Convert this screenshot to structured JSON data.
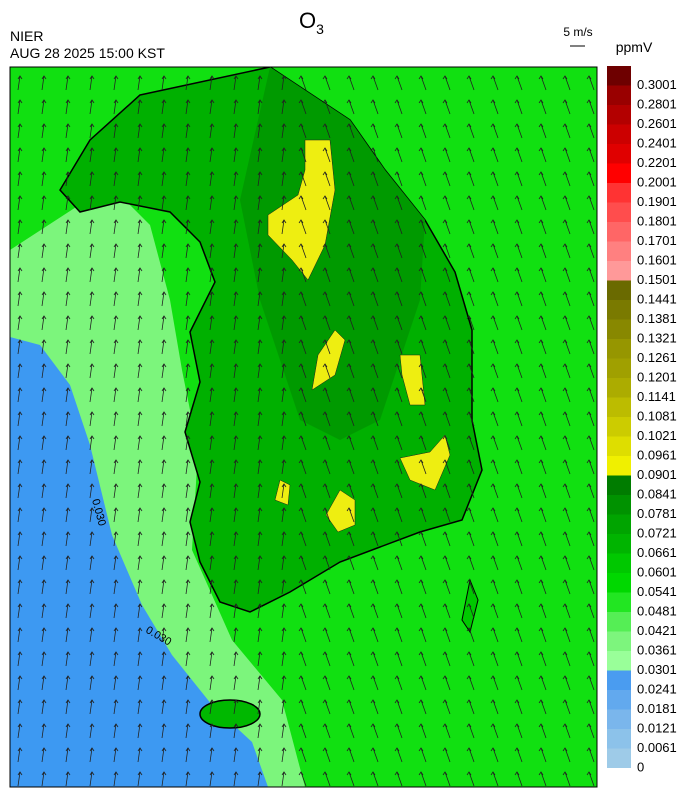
{
  "header": {
    "title": "O",
    "title_subscript": "3",
    "agency": "NIER",
    "datetime": "AUG 28 2025 15:00 KST",
    "vector_scale": "5 m/s"
  },
  "map": {
    "contour_labels": [
      "0.030",
      "0.030"
    ]
  },
  "colorbar": {
    "unit": "ppmV",
    "labels": [
      0,
      0.0061,
      0.0121,
      0.0181,
      0.0241,
      0.0301,
      0.0361,
      0.0421,
      0.0481,
      0.0541,
      0.0601,
      0.0661,
      0.0721,
      0.0781,
      0.0841,
      0.0901,
      0.0961,
      0.1021,
      0.1081,
      0.1141,
      0.1201,
      0.1261,
      0.1321,
      0.1381,
      0.1441,
      0.1501,
      0.1601,
      0.1701,
      0.1801,
      0.1901,
      0.2001,
      0.2201,
      0.2401,
      0.2601,
      0.2801,
      0.3001
    ],
    "colors": [
      "#9ecbe8",
      "#8cc2ea",
      "#7ab6ec",
      "#62a9ee",
      "#4a9cf0",
      "#99ff99",
      "#7df57d",
      "#55ee55",
      "#22e622",
      "#00d800",
      "#00c800",
      "#00b400",
      "#00a400",
      "#009200",
      "#007c00",
      "#f0f000",
      "#dede00",
      "#cccc00",
      "#bcbc00",
      "#acac00",
      "#a0a000",
      "#969600",
      "#888800",
      "#7a7a00",
      "#6a6a00",
      "#ff9999",
      "#ff8080",
      "#ff6666",
      "#ff4d4d",
      "#ff3333",
      "#ff0000",
      "#e00000",
      "#cc0000",
      "#b30000",
      "#990000",
      "#6e0000"
    ]
  }
}
